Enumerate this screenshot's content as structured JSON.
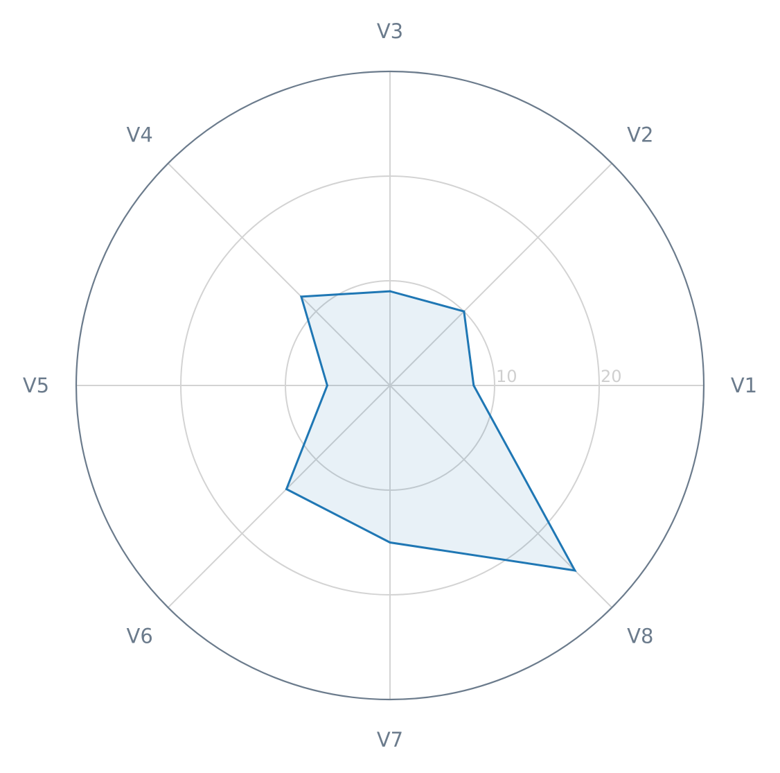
{
  "chart_data": {
    "type": "radar",
    "categories": [
      "V1",
      "V2",
      "V3",
      "V4",
      "V5",
      "V6",
      "V7",
      "V8"
    ],
    "series": [
      {
        "values": [
          8,
          10,
          9,
          12,
          6,
          14,
          15,
          25
        ]
      }
    ],
    "rlim": [
      0,
      30
    ],
    "ring_ticks": [
      10,
      20
    ],
    "ring_tick_labels": [
      "10",
      "20"
    ],
    "grid": true,
    "colors": {
      "line": "#1f77b4",
      "fill": "#1f77b4",
      "grid": "#d3d3d3",
      "frame": "#6b7b8c",
      "axis_labels": "#6b7b8c",
      "ring_labels": "#cfcfcf"
    }
  }
}
